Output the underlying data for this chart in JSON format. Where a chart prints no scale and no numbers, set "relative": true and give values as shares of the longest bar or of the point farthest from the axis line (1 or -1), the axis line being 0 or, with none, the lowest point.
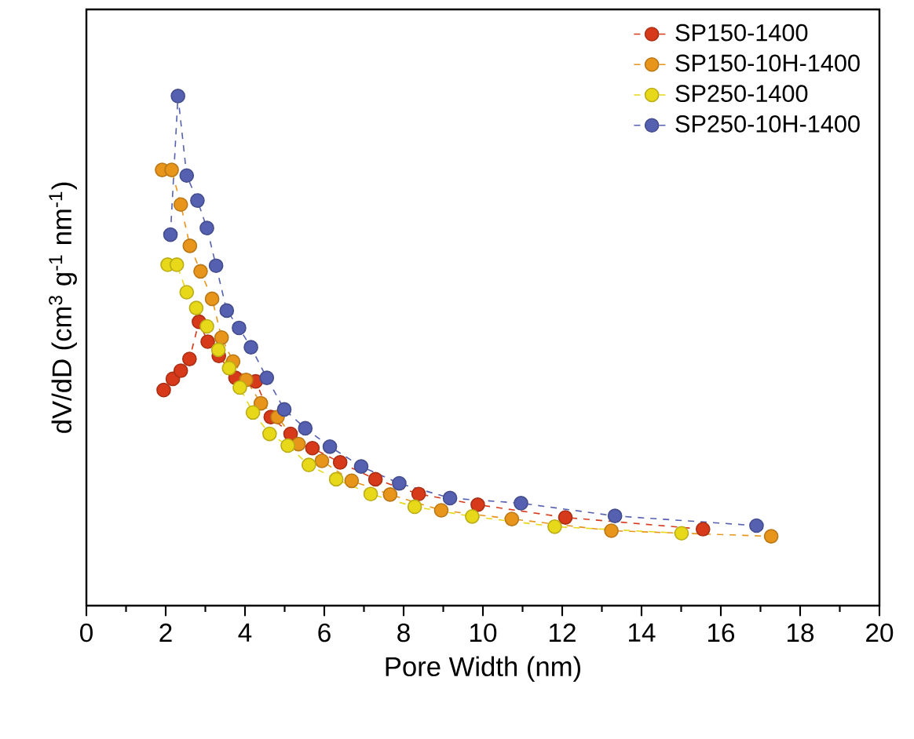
{
  "chart_data": {
    "type": "line",
    "xlabel": "Pore Width (nm)",
    "ylabel": "dV/dD (cm$^{3}$ g$^{-1}$ nm$^{-1}$)",
    "relative": true,
    "xlim": [
      0,
      20
    ],
    "xticks": [
      0,
      2,
      4,
      6,
      8,
      10,
      12,
      14,
      16,
      18,
      20
    ],
    "tick_labels": "x",
    "legend": "top right",
    "marker": "circle",
    "line_style": "dashed",
    "series": [
      {
        "name": "SP150-1400",
        "color": "#d63a1a",
        "x": [
          1.95,
          2.18,
          2.38,
          2.6,
          2.84,
          3.06,
          3.34,
          3.76,
          4.27,
          4.65,
          5.15,
          5.7,
          6.4,
          7.29,
          8.38,
          9.87,
          12.08,
          15.55
        ],
        "values": [
          0.423,
          0.445,
          0.461,
          0.484,
          0.557,
          0.518,
          0.49,
          0.447,
          0.44,
          0.37,
          0.337,
          0.309,
          0.281,
          0.248,
          0.219,
          0.198,
          0.173,
          0.15
        ]
      },
      {
        "name": "SP150-10H-1400",
        "color": "#e8951c",
        "x": [
          1.91,
          2.15,
          2.38,
          2.61,
          2.88,
          3.17,
          3.41,
          3.7,
          4.03,
          4.4,
          4.82,
          5.35,
          5.94,
          6.69,
          7.66,
          8.95,
          10.73,
          13.24,
          17.27
        ],
        "values": [
          0.855,
          0.855,
          0.787,
          0.706,
          0.656,
          0.602,
          0.526,
          0.479,
          0.443,
          0.397,
          0.37,
          0.317,
          0.284,
          0.245,
          0.218,
          0.187,
          0.17,
          0.147,
          0.136
        ]
      },
      {
        "name": "SP250-1400",
        "color": "#e8d81a",
        "x": [
          2.05,
          2.28,
          2.53,
          2.77,
          3.04,
          3.33,
          3.6,
          3.87,
          4.2,
          4.62,
          5.08,
          5.61,
          6.3,
          7.17,
          8.28,
          9.73,
          11.81,
          15.01
        ],
        "values": [
          0.669,
          0.669,
          0.615,
          0.584,
          0.548,
          0.502,
          0.466,
          0.428,
          0.379,
          0.337,
          0.314,
          0.276,
          0.248,
          0.219,
          0.194,
          0.175,
          0.155,
          0.142
        ]
      },
      {
        "name": "SP250-10H-1400",
        "color": "#5560b0",
        "x": [
          2.12,
          2.31,
          2.53,
          2.8,
          3.04,
          3.27,
          3.54,
          3.85,
          4.15,
          4.55,
          4.99,
          5.52,
          6.14,
          6.93,
          7.89,
          9.17,
          10.96,
          13.33,
          16.9
        ],
        "values": [
          0.728,
          1.0,
          0.844,
          0.795,
          0.741,
          0.667,
          0.579,
          0.545,
          0.507,
          0.447,
          0.385,
          0.348,
          0.312,
          0.273,
          0.24,
          0.211,
          0.201,
          0.176,
          0.157
        ]
      }
    ]
  }
}
